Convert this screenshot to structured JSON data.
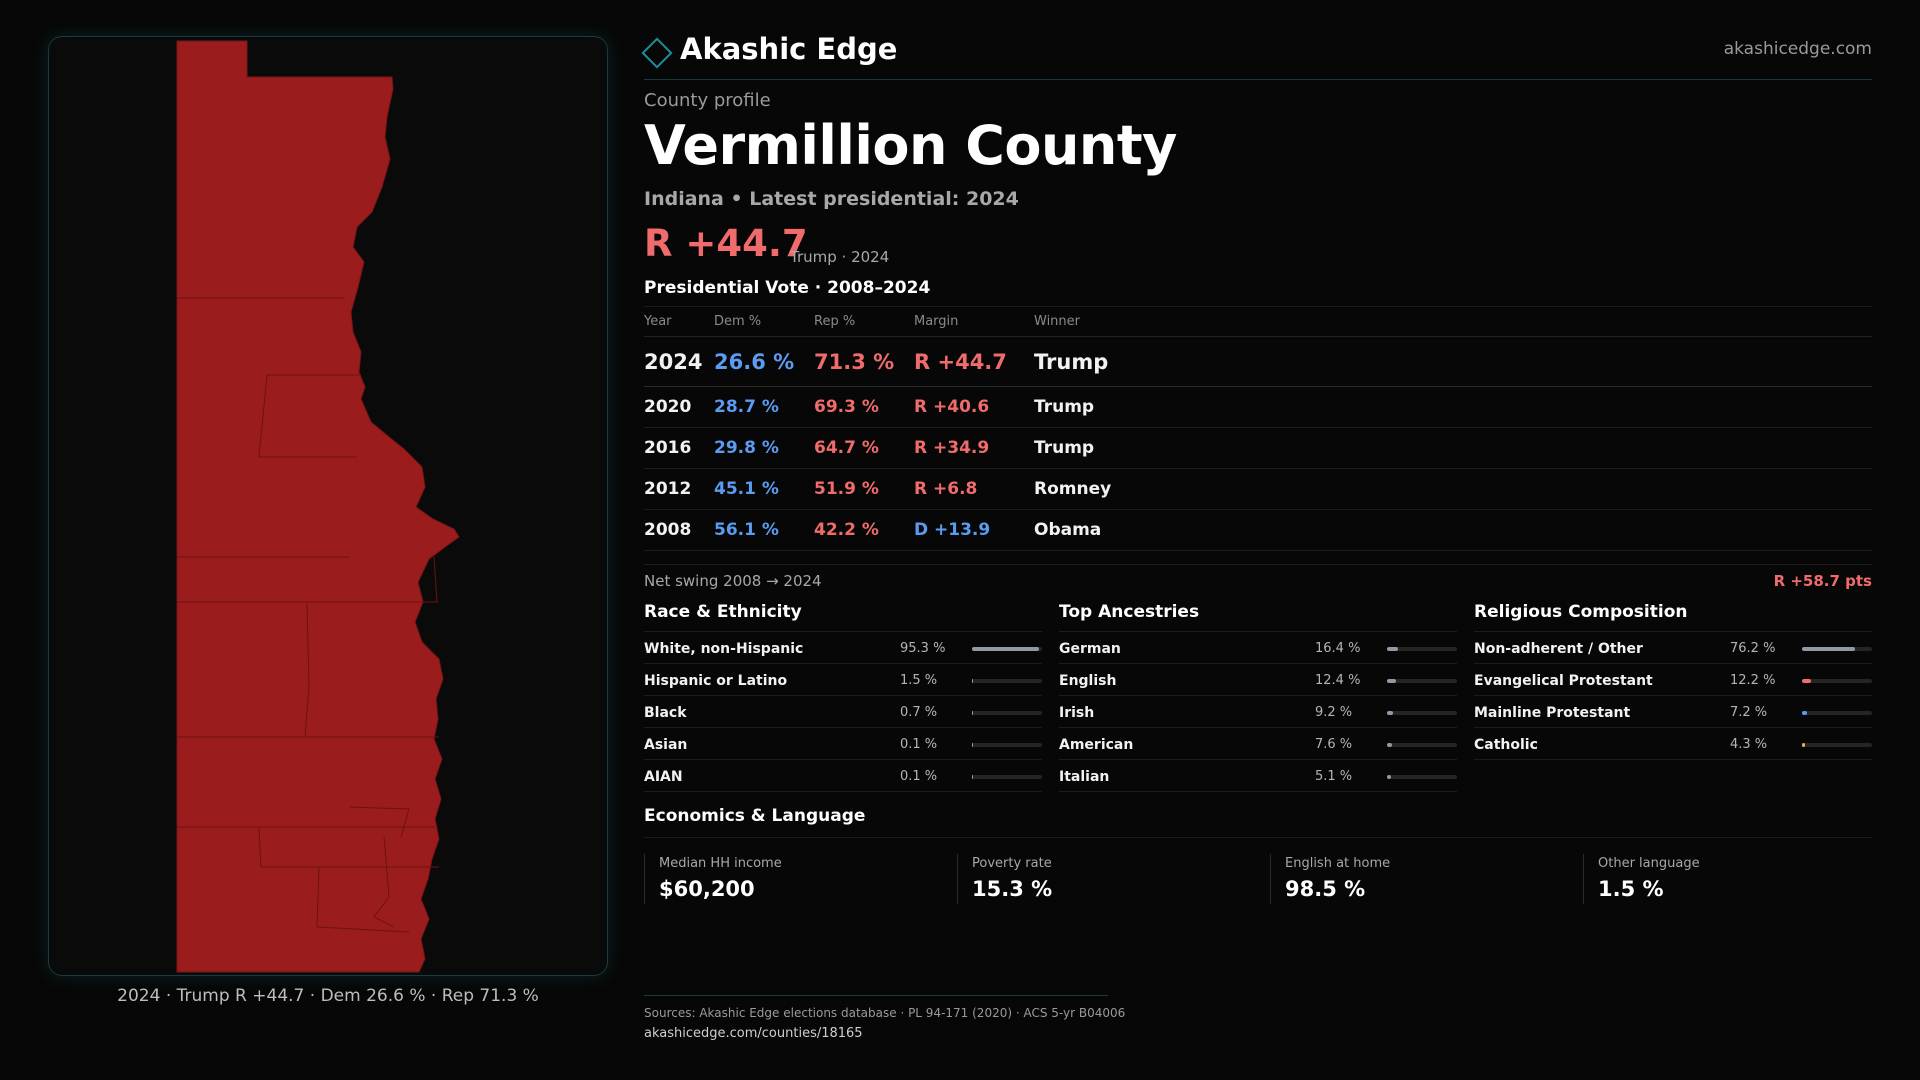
{
  "header": {
    "brand": "Akashic Edge",
    "site": "akashicedge.com"
  },
  "profile": {
    "label": "County profile",
    "county": "Vermillion County",
    "subtitle": "Indiana • Latest presidential: 2024",
    "margin": "R +44.7",
    "margin_sub": "Trump · 2024"
  },
  "map": {
    "caption": "2024 · Trump R +44.7 · Dem 26.6 % · Rep 71.3 %",
    "fill_color": "#9b1c1c"
  },
  "votes": {
    "title": "Presidential Vote · 2008–2024",
    "columns": [
      "Year",
      "Dem %",
      "Rep %",
      "Margin",
      "Winner"
    ],
    "rows": [
      {
        "year": "2024",
        "dem": "26.6 %",
        "rep": "71.3 %",
        "margin": "R +44.7",
        "winner": "Trump",
        "party": "R"
      },
      {
        "year": "2020",
        "dem": "28.7 %",
        "rep": "69.3 %",
        "margin": "R +40.6",
        "winner": "Trump",
        "party": "R"
      },
      {
        "year": "2016",
        "dem": "29.8 %",
        "rep": "64.7 %",
        "margin": "R +34.9",
        "winner": "Trump",
        "party": "R"
      },
      {
        "year": "2012",
        "dem": "45.1 %",
        "rep": "51.9 %",
        "margin": "R +6.8",
        "winner": "Romney",
        "party": "R"
      },
      {
        "year": "2008",
        "dem": "56.1 %",
        "rep": "42.2 %",
        "margin": "D +13.9",
        "winner": "Obama",
        "party": "D"
      }
    ]
  },
  "swing": {
    "label": "Net swing 2008 → 2024",
    "value": "R +58.7 pts"
  },
  "race": {
    "title": "Race & Ethnicity",
    "bar_color": "#8f9aa6",
    "items": [
      {
        "label": "White, non-Hispanic",
        "value": "95.3 %",
        "pct": 95.3
      },
      {
        "label": "Hispanic or Latino",
        "value": "1.5 %",
        "pct": 1.5
      },
      {
        "label": "Black",
        "value": "0.7 %",
        "pct": 0.7
      },
      {
        "label": "Asian",
        "value": "0.1 %",
        "pct": 0.1
      },
      {
        "label": "AIAN",
        "value": "0.1 %",
        "pct": 0.1
      }
    ]
  },
  "ancestry": {
    "title": "Top Ancestries",
    "bar_color": "#8f9aa6",
    "items": [
      {
        "label": "German",
        "value": "16.4 %",
        "pct": 16.4
      },
      {
        "label": "English",
        "value": "12.4 %",
        "pct": 12.4
      },
      {
        "label": "Irish",
        "value": "9.2 %",
        "pct": 9.2
      },
      {
        "label": "American",
        "value": "7.6 %",
        "pct": 7.6
      },
      {
        "label": "Italian",
        "value": "5.1 %",
        "pct": 5.1
      }
    ]
  },
  "religion": {
    "title": "Religious Composition",
    "items": [
      {
        "label": "Non-adherent / Other",
        "value": "76.2 %",
        "pct": 76.2,
        "color": "#8f9aa6"
      },
      {
        "label": "Evangelical Protestant",
        "value": "12.2 %",
        "pct": 12.2,
        "color": "#f06b6b"
      },
      {
        "label": "Mainline Protestant",
        "value": "7.2 %",
        "pct": 7.2,
        "color": "#5b9bf0"
      },
      {
        "label": "Catholic",
        "value": "4.3 %",
        "pct": 4.3,
        "color": "#e8b04a"
      }
    ]
  },
  "economics": {
    "title": "Economics & Language",
    "items": [
      {
        "label": "Median HH income",
        "value": "$60,200"
      },
      {
        "label": "Poverty rate",
        "value": "15.3 %"
      },
      {
        "label": "English at home",
        "value": "98.5 %"
      },
      {
        "label": "Other language",
        "value": "1.5 %"
      }
    ]
  },
  "footer": {
    "sources": "Sources: Akashic Edge elections database · PL 94-171 (2020) · ACS 5-yr B04006",
    "url": "akashicedge.com/counties/18165"
  }
}
